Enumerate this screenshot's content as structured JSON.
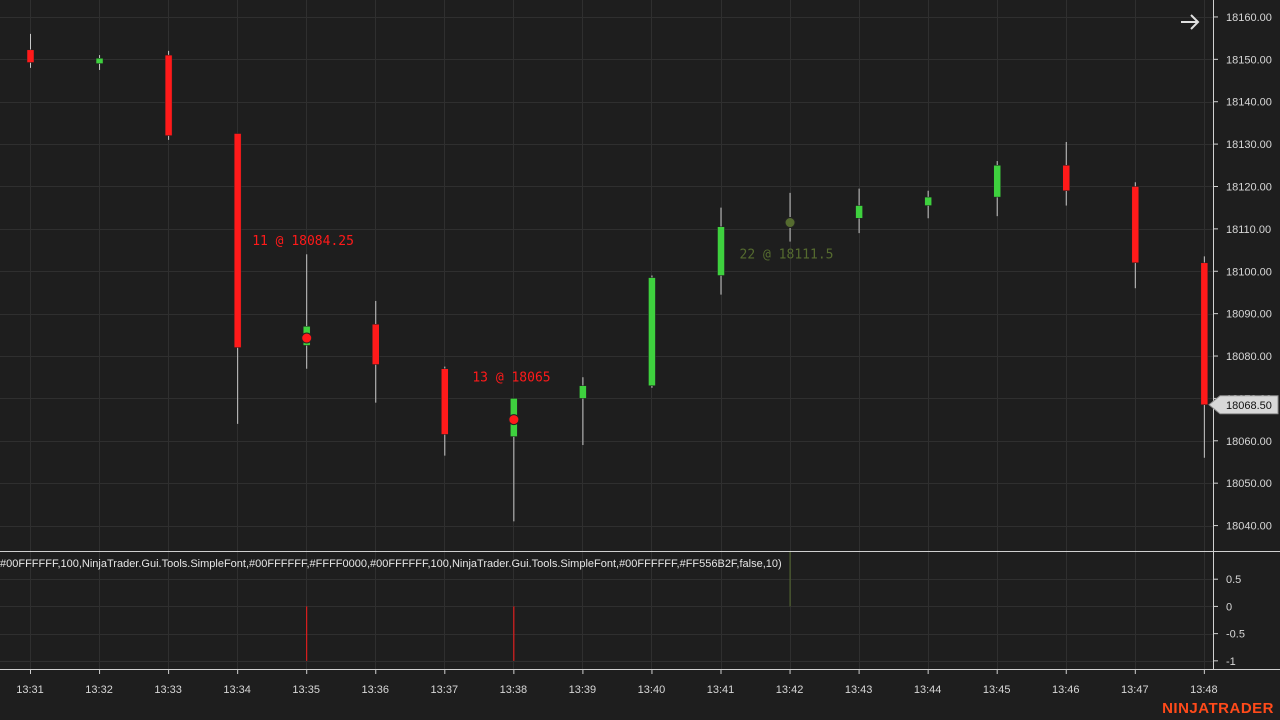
{
  "chart_data": {
    "type": "candlestick",
    "price_axis": {
      "ylim": [
        18034,
        18164
      ],
      "ticks": [
        18040,
        18050,
        18060,
        18070,
        18080,
        18090,
        18100,
        18110,
        18120,
        18130,
        18140,
        18150,
        18160
      ],
      "tick_labels": [
        "18040.00",
        "18050.00",
        "18060.00",
        "18070.00",
        "18080.00",
        "18090.00",
        "18100.00",
        "18110.00",
        "18120.00",
        "18130.00",
        "18140.00",
        "18150.00",
        "18160.00"
      ],
      "last_price_label": "18068.50",
      "last_price": 18068.5
    },
    "time_axis": {
      "labels": [
        "13:31",
        "13:32",
        "13:33",
        "13:34",
        "13:35",
        "13:36",
        "13:37",
        "13:38",
        "13:39",
        "13:40",
        "13:41",
        "13:42",
        "13:43",
        "13:44",
        "13:45",
        "13:46",
        "13:47",
        "13:48"
      ]
    },
    "candles": [
      {
        "time": "13:31",
        "open": 18152.25,
        "high": 18156,
        "low": 18148,
        "close": 18149.25
      },
      {
        "time": "13:32",
        "open": 18149,
        "high": 18151,
        "low": 18147.5,
        "close": 18150.25
      },
      {
        "time": "13:33",
        "open": 18151,
        "high": 18152,
        "low": 18131,
        "close": 18132
      },
      {
        "time": "13:34",
        "open": 18132.5,
        "high": 18132.5,
        "low": 18064,
        "close": 18082
      },
      {
        "time": "13:35",
        "open": 18082.5,
        "high": 18104,
        "low": 18077,
        "close": 18087
      },
      {
        "time": "13:36",
        "open": 18087.5,
        "high": 18093,
        "low": 18069,
        "close": 18078
      },
      {
        "time": "13:37",
        "open": 18077,
        "high": 18077.5,
        "low": 18056.5,
        "close": 18061.5
      },
      {
        "time": "13:38",
        "open": 18061,
        "high": 18070,
        "low": 18041,
        "close": 18070
      },
      {
        "time": "13:39",
        "open": 18070,
        "high": 18075,
        "low": 18059,
        "close": 18073
      },
      {
        "time": "13:40",
        "open": 18073,
        "high": 18099,
        "low": 18072.5,
        "close": 18098.5
      },
      {
        "time": "13:41",
        "open": 18099,
        "high": 18115,
        "low": 18094.5,
        "close": 18110.5
      },
      {
        "time": "13:42",
        "open": 18110.5,
        "high": 18118.5,
        "low": 18107,
        "close": 18111.5
      },
      {
        "time": "13:43",
        "open": 18112.5,
        "high": 18119.5,
        "low": 18109,
        "close": 18115.5
      },
      {
        "time": "13:44",
        "open": 18115.5,
        "high": 18119,
        "low": 18112.5,
        "close": 18117.5
      },
      {
        "time": "13:45",
        "open": 18117.5,
        "high": 18126,
        "low": 18113,
        "close": 18125
      },
      {
        "time": "13:46",
        "open": 18125,
        "high": 18130.5,
        "low": 18115.5,
        "close": 18119
      },
      {
        "time": "13:47",
        "open": 18120,
        "high": 18121,
        "low": 18096,
        "close": 18102
      },
      {
        "time": "13:48",
        "open": 18102,
        "high": 18103.5,
        "low": 18056,
        "close": 18068.5
      }
    ],
    "markers": [
      {
        "time": "13:35",
        "price": 18084.25,
        "label": "11 @ 18084.25",
        "color": "#ff1a1a"
      },
      {
        "time": "13:38",
        "price": 18065,
        "label": "13 @ 18065",
        "color": "#ff1a1a"
      },
      {
        "time": "13:42",
        "price": 18111.5,
        "label": "22 @ 18111.5",
        "color": "#556b2f"
      }
    ],
    "indicator": {
      "text": "#00FFFFFF,100,NinjaTrader.Gui.Tools.SimpleFont,#00FFFFFF,#FFFF0000,#00FFFFFF,100,NinjaTrader.Gui.Tools.SimpleFont,#00FFFFFF,#FF556B2F,false,10)",
      "ylim": [
        -1.15,
        1.0
      ],
      "ticks": [
        0.5,
        0,
        -0.5,
        -1
      ],
      "tick_labels": [
        "0.5",
        "0",
        "-0.5",
        "-1"
      ],
      "bars": [
        {
          "time": "13:35",
          "value": -1,
          "color": "#ff1a1a"
        },
        {
          "time": "13:38",
          "value": -1,
          "color": "#ff1a1a"
        },
        {
          "time": "13:42",
          "value": 1,
          "color": "#556b2f"
        }
      ]
    },
    "colors": {
      "up": "#3ed13e",
      "down": "#ff1a1a",
      "background": "#1e1e1e",
      "grid": "#2f2f2f"
    }
  },
  "brand": "NINJATRADER",
  "nav": {
    "icon": "arrow-right-icon"
  }
}
